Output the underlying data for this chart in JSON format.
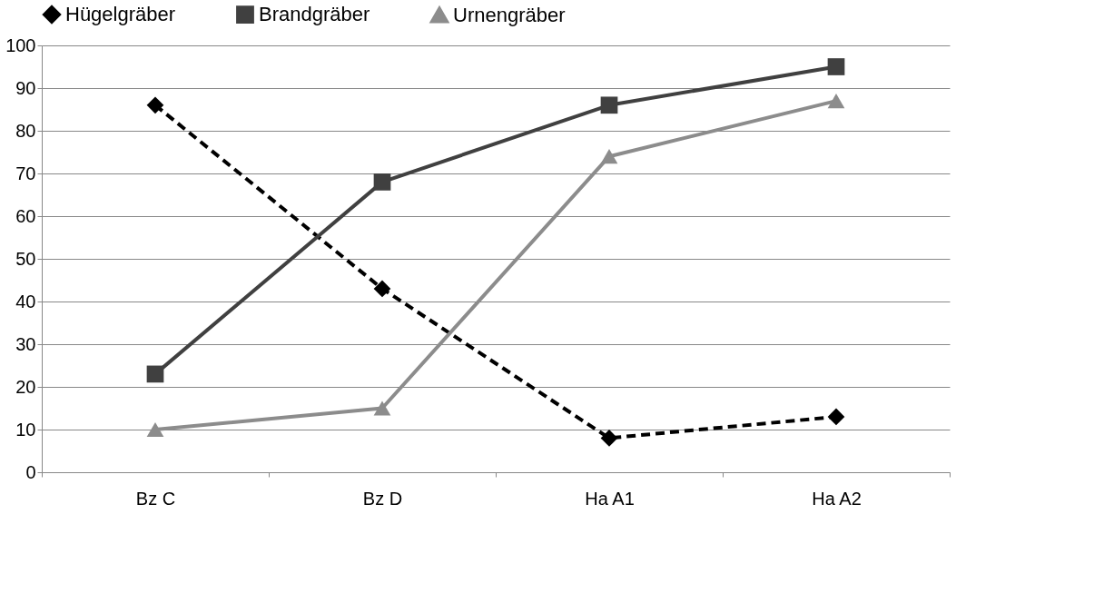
{
  "chart_data": {
    "type": "line",
    "categories": [
      "Bz C",
      "Bz D",
      "Ha A1",
      "Ha A2"
    ],
    "series": [
      {
        "name": "Hügelgräber",
        "color": "#000000",
        "marker": "diamond",
        "line_style": "dashed",
        "values": [
          86,
          43,
          8,
          13
        ]
      },
      {
        "name": "Brandgräber",
        "color": "#404040",
        "marker": "square",
        "line_style": "solid",
        "values": [
          23,
          68,
          86,
          95
        ]
      },
      {
        "name": "Urnengräber",
        "color": "#8c8c8c",
        "marker": "triangle",
        "line_style": "solid",
        "values": [
          10,
          15,
          74,
          87
        ]
      }
    ],
    "ylim": [
      0,
      100
    ],
    "yticks": [
      0,
      10,
      20,
      30,
      40,
      50,
      60,
      70,
      80,
      90,
      100
    ],
    "grid": "y",
    "legend": "top"
  }
}
